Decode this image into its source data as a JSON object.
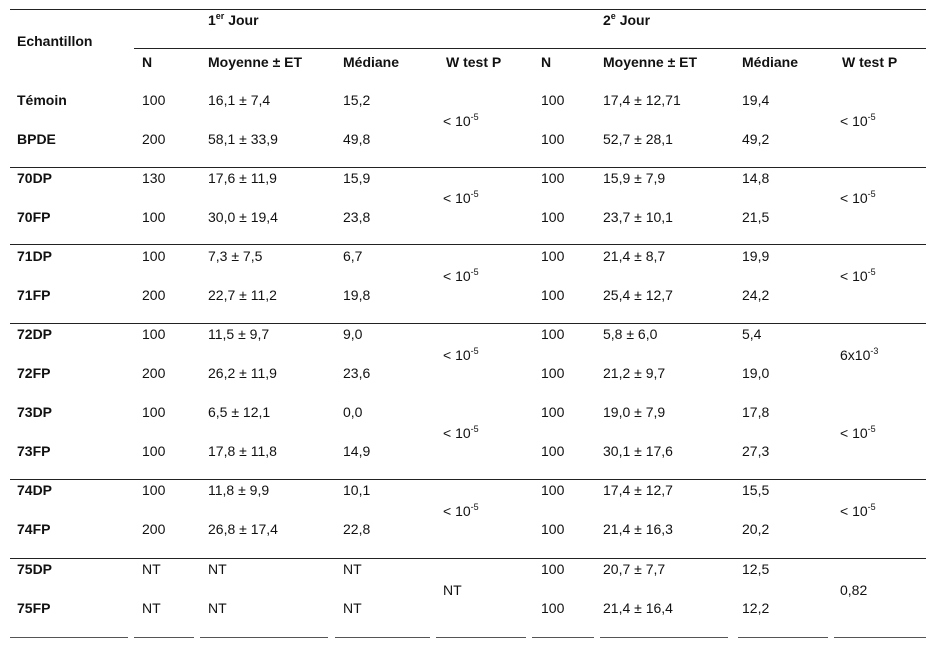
{
  "header": {
    "echantillon": "Echantillon",
    "day1": {
      "main": "1",
      "sup": "er",
      "rest": " Jour"
    },
    "day2": {
      "main": "2",
      "sup": "e",
      "rest": " Jour"
    },
    "columns": [
      "N",
      "Moyenne ± ET",
      "Médiane",
      "W test P",
      "N",
      "Moyenne ± ET",
      "Médiane",
      "W test P"
    ]
  },
  "rows": [
    {
      "label": "Témoin",
      "n1": "100",
      "mean1": "16,1 ± 7,4",
      "med1": "15,2",
      "n2": "100",
      "mean2": "17,4 ± 12,71",
      "med2": "19,4"
    },
    {
      "label": "BPDE",
      "n1": "200",
      "mean1": "58,1 ± 33,9",
      "med1": "49,8",
      "n2": "100",
      "mean2": "52,7 ± 28,1",
      "med2": "49,2"
    },
    {
      "label": "70DP",
      "n1": "130",
      "mean1": "17,6 ± 11,9",
      "med1": "15,9",
      "n2": "100",
      "mean2": "15,9 ± 7,9",
      "med2": "14,8"
    },
    {
      "label": "70FP",
      "n1": "100",
      "mean1": "30,0 ± 19,4",
      "med1": "23,8",
      "n2": "100",
      "mean2": "23,7 ± 10,1",
      "med2": "21,5"
    },
    {
      "label": "71DP",
      "n1": "100",
      "mean1": "7,3 ± 7,5",
      "med1": "6,7",
      "n2": "100",
      "mean2": "21,4 ± 8,7",
      "med2": "19,9"
    },
    {
      "label": "71FP",
      "n1": "200",
      "mean1": "22,7 ± 11,2",
      "med1": "19,8",
      "n2": "100",
      "mean2": "25,4 ± 12,7",
      "med2": "24,2"
    },
    {
      "label": "72DP",
      "n1": "100",
      "mean1": "11,5 ± 9,7",
      "med1": "9,0",
      "n2": "100",
      "mean2": "5,8 ± 6,0",
      "med2": "5,4"
    },
    {
      "label": "72FP",
      "n1": "200",
      "mean1": "26,2 ± 11,9",
      "med1": "23,6",
      "n2": "100",
      "mean2": "21,2 ± 9,7",
      "med2": "19,0"
    },
    {
      "label": "73DP",
      "n1": "100",
      "mean1": "6,5 ± 12,1",
      "med1": "0,0",
      "n2": "100",
      "mean2": "19,0 ± 7,9",
      "med2": "17,8"
    },
    {
      "label": "73FP",
      "n1": "100",
      "mean1": "17,8 ± 11,8",
      "med1": "14,9",
      "n2": "100",
      "mean2": "30,1 ± 17,6",
      "med2": "27,3"
    },
    {
      "label": "74DP",
      "n1": "100",
      "mean1": "11,8 ± 9,9",
      "med1": "10,1",
      "n2": "100",
      "mean2": "17,4 ± 12,7",
      "med2": "15,5"
    },
    {
      "label": "74FP",
      "n1": "200",
      "mean1": "26,8 ± 17,4",
      "med1": "22,8",
      "n2": "100",
      "mean2": "21,4 ± 16,3",
      "med2": "20,2"
    },
    {
      "label": "75DP",
      "n1": "NT",
      "mean1": "NT",
      "med1": "NT",
      "n2": "100",
      "mean2": "20,7 ± 7,7",
      "med2": "12,5"
    },
    {
      "label": "75FP",
      "n1": "NT",
      "mean1": "NT",
      "med1": "NT",
      "n2": "100",
      "mean2": "21,4 ± 16,4",
      "med2": "12,2"
    }
  ],
  "wtest1": [
    {
      "base": "< 10",
      "exp": "-5"
    },
    {
      "base": "< 10",
      "exp": "-5"
    },
    {
      "base": "< 10",
      "exp": "-5"
    },
    {
      "base": "< 10",
      "exp": "-5"
    },
    {
      "base": "< 10",
      "exp": "-5"
    },
    {
      "base": "< 10",
      "exp": "-5"
    },
    {
      "base": "NT",
      "exp": ""
    }
  ],
  "wtest2": [
    {
      "base": "< 10",
      "exp": "-5"
    },
    {
      "base": "< 10",
      "exp": "-5"
    },
    {
      "base": "< 10",
      "exp": "-5"
    },
    {
      "base": "6x10",
      "exp": "-3"
    },
    {
      "base": "< 10",
      "exp": "-5"
    },
    {
      "base": "< 10",
      "exp": "-5"
    },
    {
      "base": "0,82",
      "exp": ""
    }
  ]
}
